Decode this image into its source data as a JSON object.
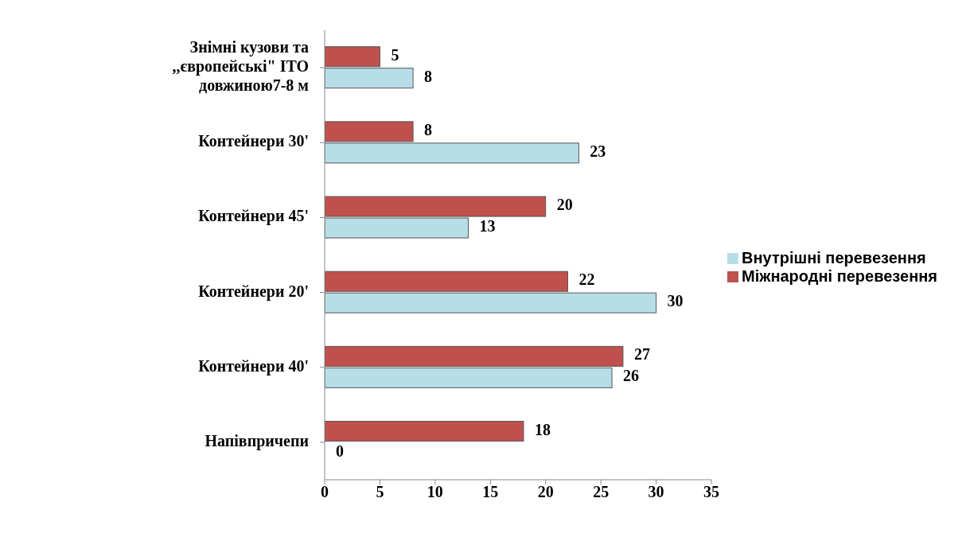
{
  "chart_data": {
    "type": "bar",
    "orientation": "horizontal",
    "categories": [
      "Знімні кузови та\n,,європейські\" ITO\nдовжиною7-8 м",
      "Контейнери 30'",
      "Контейнери 45'",
      "Контейнери 20'",
      "Контейнери 40'",
      "Напівпричепи"
    ],
    "series": [
      {
        "name": "Міжнародні перевезення",
        "color": "#c0504d",
        "values": [
          5,
          8,
          20,
          22,
          27,
          18
        ]
      },
      {
        "name": "Внутрішні перевезення",
        "color": "#b7dee8",
        "values": [
          8,
          23,
          13,
          30,
          26,
          0
        ]
      }
    ],
    "xlim": [
      0,
      35
    ],
    "xticks": [
      0,
      5,
      10,
      15,
      20,
      25,
      30,
      35
    ],
    "grid": false,
    "legend": "right",
    "data_labels": true
  }
}
